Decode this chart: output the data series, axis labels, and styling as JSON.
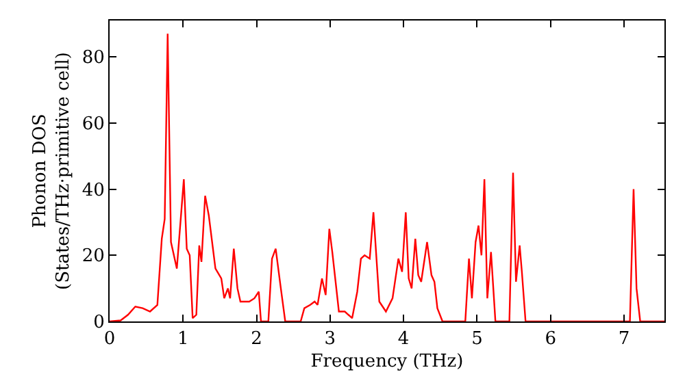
{
  "chart_data": {
    "type": "line",
    "xlabel": "Frequency (THz)",
    "ylabel": "Phonon DOS\n(States/THz·primitive cell)",
    "x": [
      0.0,
      0.15,
      0.25,
      0.35,
      0.45,
      0.55,
      0.65,
      0.71,
      0.75,
      0.79,
      0.835,
      0.915,
      1.01,
      1.05,
      1.09,
      1.13,
      1.18,
      1.22,
      1.25,
      1.3,
      1.35,
      1.44,
      1.52,
      1.56,
      1.61,
      1.64,
      1.69,
      1.74,
      1.78,
      1.9,
      1.97,
      2.03,
      2.06,
      2.16,
      2.21,
      2.26,
      2.33,
      2.39,
      2.6,
      2.65,
      2.73,
      2.79,
      2.83,
      2.89,
      2.94,
      2.99,
      3.03,
      3.12,
      3.2,
      3.3,
      3.37,
      3.42,
      3.47,
      3.54,
      3.59,
      3.67,
      3.76,
      3.85,
      3.93,
      3.98,
      4.03,
      4.07,
      4.11,
      4.16,
      4.2,
      4.24,
      4.32,
      4.38,
      4.42,
      4.46,
      4.53,
      4.84,
      4.89,
      4.93,
      4.98,
      5.02,
      5.06,
      5.1,
      5.14,
      5.19,
      5.25,
      5.44,
      5.49,
      5.53,
      5.58,
      5.61,
      5.66,
      7.08,
      7.13,
      7.17,
      7.22,
      7.55
    ],
    "series": [
      {
        "color": "#ff0000",
        "values": [
          0,
          0.3,
          2,
          4.5,
          4,
          3,
          5,
          25,
          31,
          87,
          24,
          16,
          43,
          22,
          20,
          1,
          2,
          23,
          18,
          38,
          32,
          16,
          13,
          7,
          10,
          7,
          22,
          10,
          6,
          6,
          7,
          9,
          0,
          0,
          19,
          22,
          10,
          0,
          0,
          4,
          5,
          6,
          5,
          13,
          8,
          28,
          21,
          3,
          3,
          1,
          9,
          19,
          20,
          19,
          33,
          6,
          3,
          7,
          19,
          15,
          33,
          13,
          10,
          25,
          14,
          12,
          24,
          14,
          12,
          4,
          0,
          0,
          19,
          7,
          24,
          29,
          20,
          43,
          7,
          21,
          0,
          0,
          45,
          12,
          23,
          15,
          0,
          0,
          40,
          10,
          0,
          0
        ]
      }
    ],
    "xlim": [
      0,
      7.55
    ],
    "ylim": [
      0,
      91
    ],
    "xticks": [
      0,
      1,
      2,
      3,
      4,
      5,
      6,
      7
    ],
    "yticks": [
      0,
      20,
      40,
      60,
      80
    ]
  }
}
